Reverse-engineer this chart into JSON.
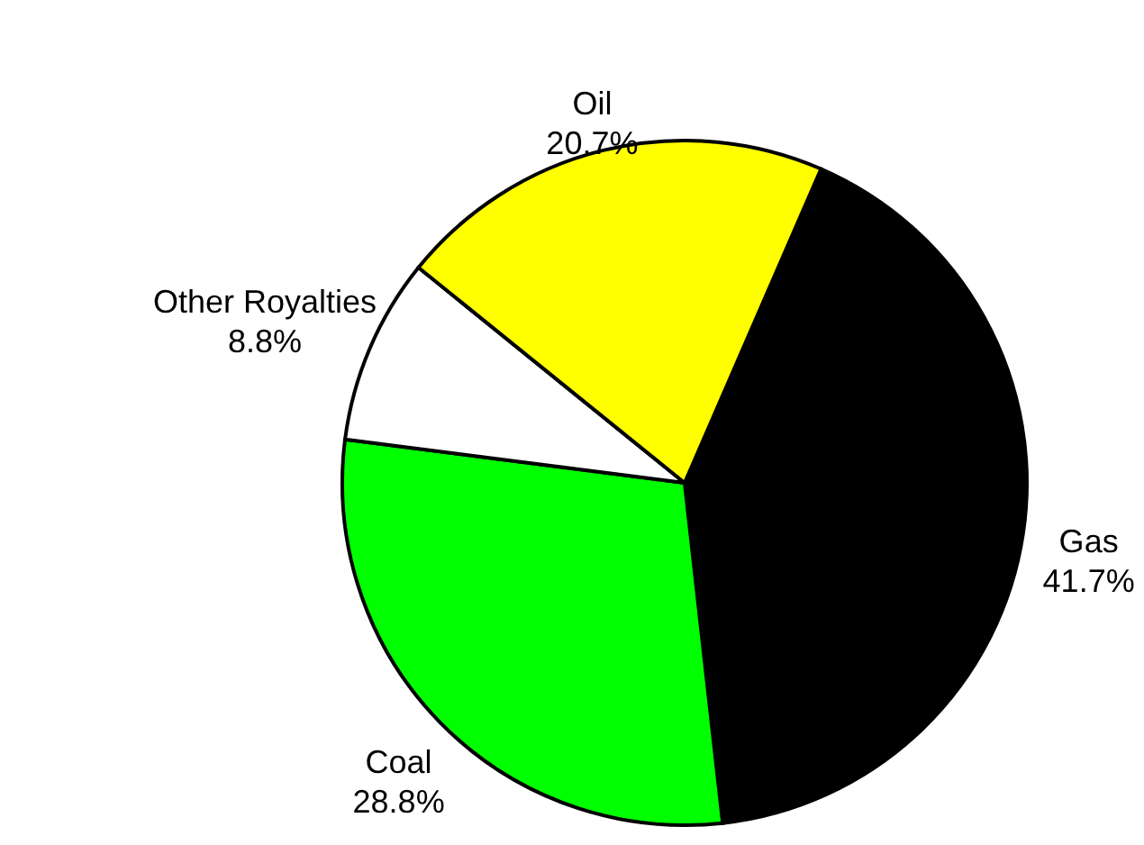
{
  "chart_data": {
    "type": "pie",
    "categories": [
      "Gas",
      "Coal",
      "Other Royalties",
      "Oil"
    ],
    "values": [
      41.7,
      28.8,
      8.8,
      20.7
    ],
    "value_labels": [
      "41.7%",
      "28.8%",
      "8.8%",
      "20.7%"
    ],
    "colors": [
      "#000000",
      "#00ff00",
      "#ffffff",
      "#ffff00"
    ]
  }
}
